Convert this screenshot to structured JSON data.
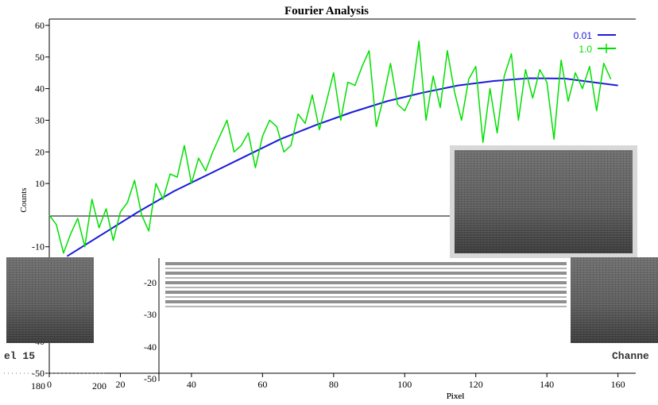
{
  "chart_data": {
    "type": "line",
    "title": "Fourier Analysis",
    "xlabel": "Pixel",
    "ylabel": "Counts",
    "xlim": [
      0,
      165
    ],
    "ylim": [
      -50,
      62
    ],
    "x_ticks": [
      0,
      20,
      40,
      60,
      80,
      100,
      120,
      140,
      160
    ],
    "y_ticks": [
      -50,
      -40,
      -30,
      -20,
      -10,
      10,
      20,
      30,
      40,
      50,
      60
    ],
    "grid": false,
    "legend_position": "top-right",
    "series": [
      {
        "name": "0.01",
        "color": "#1a1adc",
        "x": [
          5,
          15,
          25,
          35,
          45,
          55,
          65,
          75,
          85,
          95,
          105,
          115,
          125,
          135,
          145,
          160
        ],
        "y": [
          -13,
          -6,
          1,
          7.5,
          13,
          18.5,
          24,
          28.5,
          32.5,
          36,
          38.7,
          41,
          42.4,
          43.3,
          43.2,
          41
        ]
      },
      {
        "name": "1.0",
        "color": "#00e000",
        "x": [
          0,
          2,
          4,
          6,
          8,
          10,
          12,
          14,
          16,
          18,
          20,
          22,
          24,
          26,
          28,
          30,
          32,
          34,
          36,
          38,
          40,
          42,
          44,
          46,
          48,
          50,
          52,
          54,
          56,
          58,
          60,
          62,
          64,
          66,
          68,
          70,
          72,
          74,
          76,
          78,
          80,
          82,
          84,
          86,
          88,
          90,
          92,
          94,
          96,
          98,
          100,
          102,
          104,
          106,
          108,
          110,
          112,
          114,
          116,
          118,
          120,
          122,
          124,
          126,
          128,
          130,
          132,
          134,
          136,
          138,
          140,
          142,
          144,
          146,
          148,
          150,
          152,
          154,
          156,
          158
        ],
        "y": [
          0,
          -3,
          -12,
          -6,
          -1,
          -10,
          5,
          -4,
          2,
          -8,
          1,
          4,
          11,
          0,
          -5,
          10,
          5,
          13,
          12,
          22,
          10,
          18,
          14,
          20,
          25,
          30,
          20,
          22,
          26,
          15,
          25,
          30,
          28,
          20,
          22,
          32,
          29,
          38,
          27,
          36,
          45,
          30,
          42,
          41,
          47,
          52,
          28,
          37,
          48,
          35,
          33,
          38,
          55,
          30,
          44,
          34,
          52,
          39,
          30,
          43,
          47,
          23,
          40,
          26,
          44,
          51,
          30,
          46,
          37,
          46,
          42,
          24,
          49,
          36,
          45,
          40,
          47,
          33,
          48,
          43
        ]
      }
    ]
  },
  "overlay": {
    "left_channel_label": "el 15",
    "right_channel_label": "Channe",
    "lower_y_ticks": [
      "-20",
      "-30",
      "-40",
      "-50"
    ],
    "lower_x_ticks": [
      "0",
      "20",
      "40",
      "60",
      "80",
      "100",
      "120",
      "140",
      "160"
    ],
    "left_ticks": [
      "180",
      "200"
    ],
    "bottom_right_text": "Pixel"
  }
}
